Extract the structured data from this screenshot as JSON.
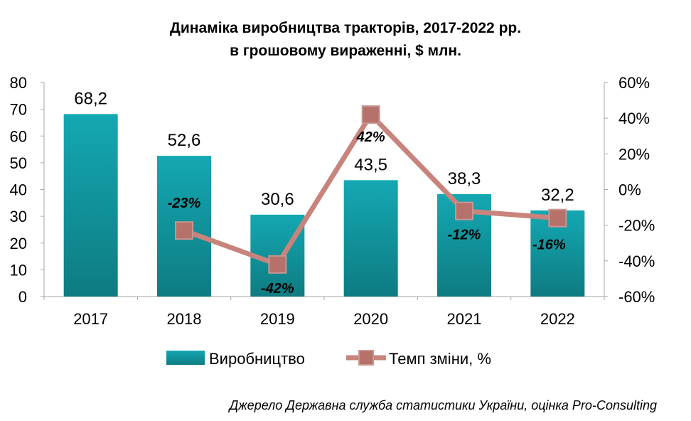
{
  "chart_data": {
    "type": "bar",
    "title_line1": "Динаміка виробництва тракторів, 2017-2022 рр.",
    "title_line2": "в грошовому вираженні,  $ млн.",
    "categories": [
      "2017",
      "2018",
      "2019",
      "2020",
      "2021",
      "2022"
    ],
    "series": [
      {
        "name": "Виробництво",
        "kind": "bar",
        "axis": "left",
        "values": [
          68.2,
          52.6,
          30.6,
          43.5,
          38.3,
          32.2
        ],
        "labels": [
          "68,2",
          "52,6",
          "30,6",
          "43,5",
          "38,3",
          "32,2"
        ],
        "color": "#1a9ba5"
      },
      {
        "name": "Темп зміни, %",
        "kind": "line",
        "axis": "right",
        "values": [
          null,
          -23,
          -42,
          42,
          -12,
          -16
        ],
        "labels": [
          "",
          "-23%",
          "-42%",
          "42%",
          "-12%",
          "-16%"
        ],
        "color": "#c8847c"
      }
    ],
    "y_left": {
      "min": 0,
      "max": 80,
      "ticks": [
        "0",
        "10",
        "20",
        "30",
        "40",
        "50",
        "60",
        "70",
        "80"
      ]
    },
    "y_right": {
      "min": -60,
      "max": 60,
      "ticks": [
        "-60%",
        "-40%",
        "-20%",
        "0%",
        "20%",
        "40%",
        "60%"
      ]
    },
    "grid": false,
    "legend_position": "bottom"
  },
  "source_note": "Джерело Державна служба статистики України, оцінка Pro-Consulting"
}
